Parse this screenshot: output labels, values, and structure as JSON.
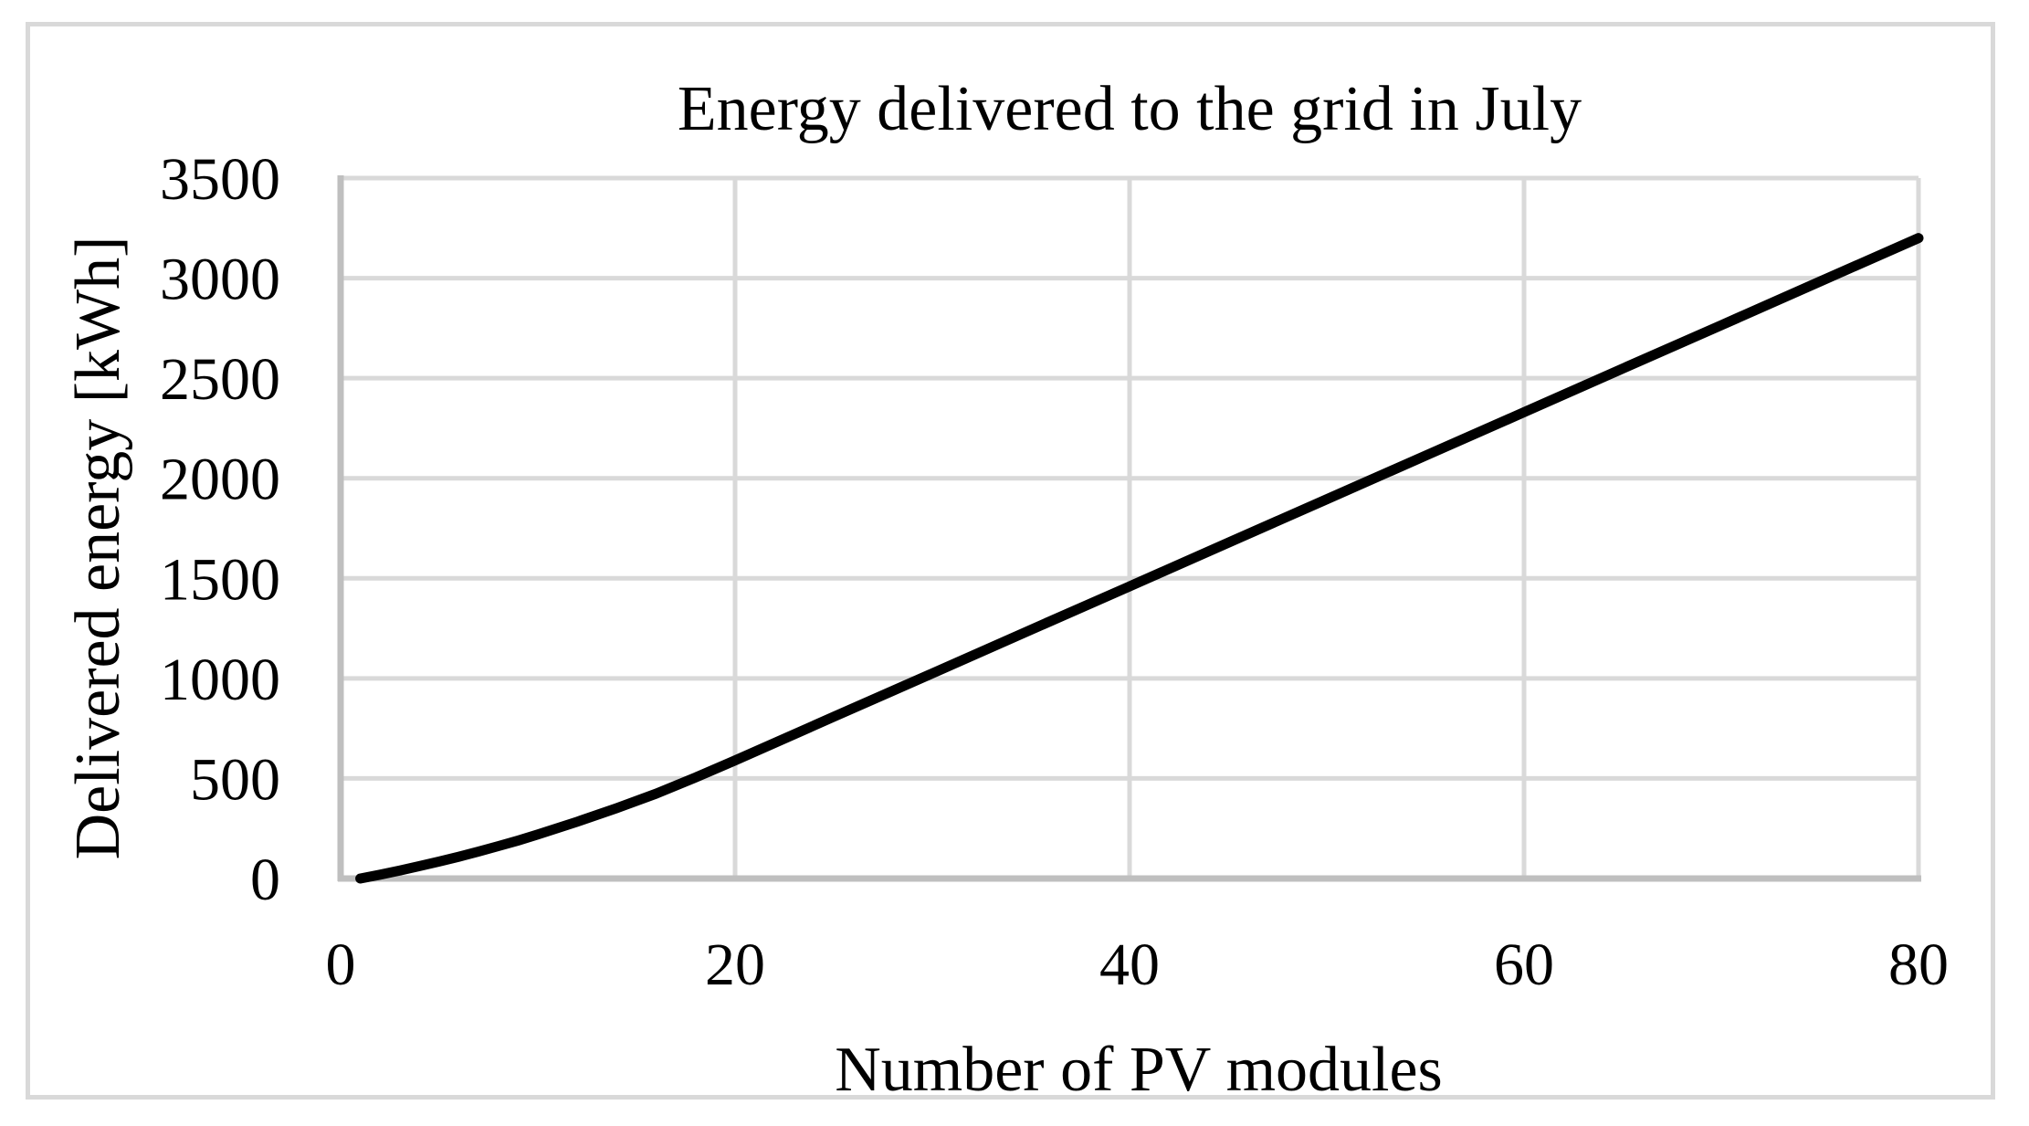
{
  "chart_data": {
    "type": "line",
    "title": "Energy delivered to the grid in July",
    "xlabel": "Number of PV modules",
    "ylabel": "Delivered energy [kWh]",
    "xlim": [
      0,
      80
    ],
    "ylim": [
      0,
      3500
    ],
    "x_ticks": [
      0,
      20,
      40,
      60,
      80
    ],
    "y_ticks": [
      0,
      500,
      1000,
      1500,
      2000,
      2500,
      3000,
      3500
    ],
    "grid": true,
    "legend_position": "none",
    "series": [
      {
        "x": [
          1,
          2,
          3,
          4,
          5,
          6,
          7,
          8,
          9,
          10,
          12,
          14,
          16,
          18,
          20,
          25,
          30,
          35,
          40,
          45,
          50,
          55,
          60,
          65,
          70,
          75,
          80
        ],
        "y": [
          0,
          19,
          40,
          62,
          85,
          109,
          135,
          162,
          190,
          220,
          284,
          352,
          424,
          505,
          590,
          808,
          1025,
          1243,
          1460,
          1678,
          1895,
          2113,
          2330,
          2548,
          2765,
          2983,
          3200
        ]
      }
    ],
    "colors": {
      "line": "#000000",
      "gridline": "#d9d9d9",
      "axis": "#bfbfbf",
      "frame": "#d9d9d9",
      "background": "#ffffff",
      "text": "#000000"
    }
  }
}
